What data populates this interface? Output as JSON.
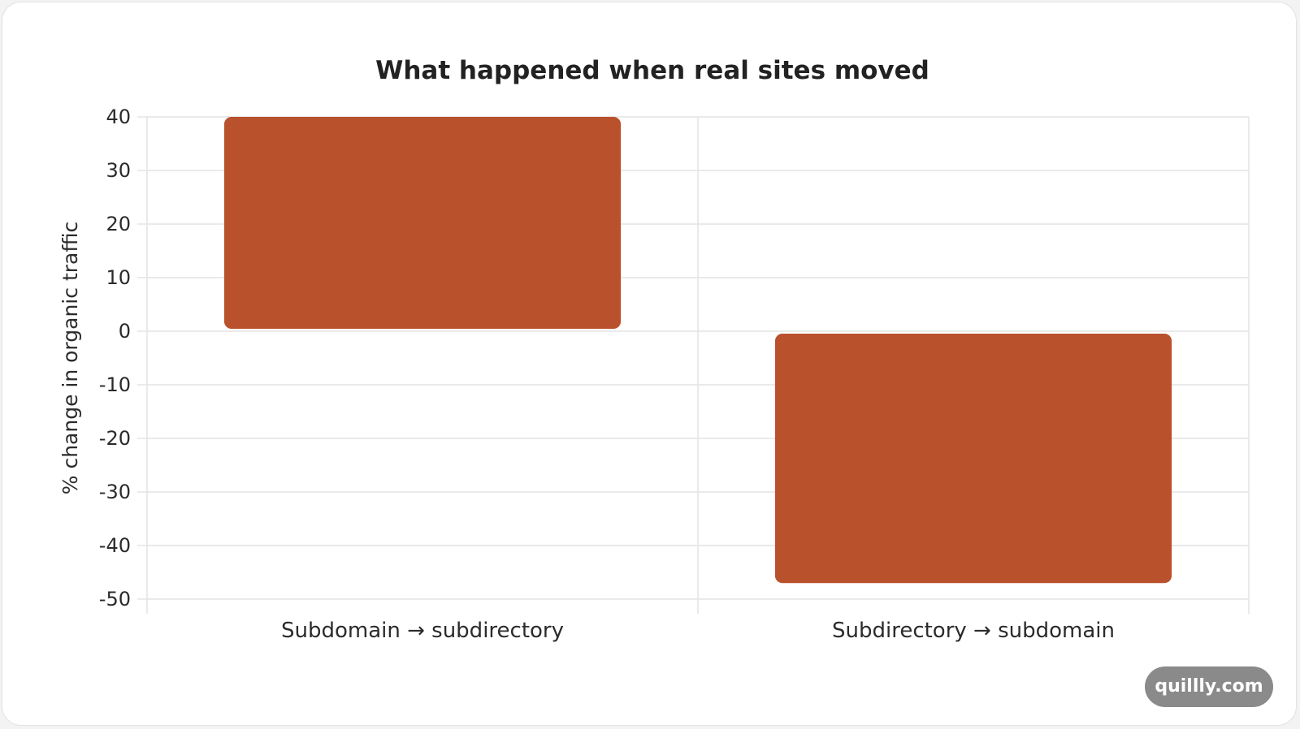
{
  "watermark": "quillly.com",
  "colors": {
    "bar": "#b9512d",
    "grid": "#e4e4e4",
    "axis": "#cfcfcf"
  },
  "chart_data": {
    "type": "bar",
    "title": "What happened when real sites moved",
    "xlabel": "",
    "ylabel": "% change in organic traffic",
    "categories": [
      "Subdomain → subdirectory",
      "Subdirectory → subdomain"
    ],
    "values": [
      40,
      -47
    ],
    "ylim": [
      -50,
      40
    ],
    "yticks": [
      40,
      30,
      20,
      10,
      0,
      -10,
      -20,
      -30,
      -40,
      -50
    ],
    "grid": true,
    "legend": "none"
  }
}
